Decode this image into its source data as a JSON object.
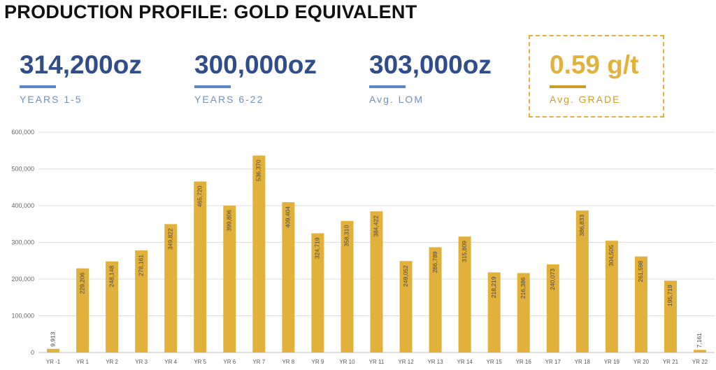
{
  "header": {
    "title": "PRODUCTION PROFILE: GOLD EQUIVALENT"
  },
  "stats": [
    {
      "value": "314,200oz",
      "label": "YEARS 1-5"
    },
    {
      "value": "300,000oz",
      "label": "YEARS 6-22"
    },
    {
      "value": "303,000oz",
      "label": "Avg. LOM"
    },
    {
      "value": "0.59 g/t",
      "label": "Avg. GRADE"
    }
  ],
  "colors": {
    "bar": "#e2b13c",
    "stat_blue": "#2f4d8a",
    "stat_gold": "#e2b13c",
    "grid": "#dddddd"
  },
  "chart_data": {
    "type": "bar",
    "title": "",
    "xlabel": "",
    "ylabel": "",
    "ylim": [
      0,
      600000
    ],
    "yticks": [
      0,
      100000,
      200000,
      300000,
      400000,
      500000,
      600000
    ],
    "ytick_labels": [
      "0",
      "100,000",
      "200,000",
      "300,000",
      "400,000",
      "500,000",
      "600,000"
    ],
    "grid": true,
    "categories": [
      "YR -1",
      "YR 1",
      "YR 2",
      "YR 3",
      "YR 4",
      "YR 5",
      "YR 6",
      "YR 7",
      "YR 8",
      "YR 9",
      "YR 10",
      "YR 11",
      "YR 12",
      "YR 13",
      "YR 14",
      "YR 15",
      "YR 16",
      "YR 17",
      "YR 18",
      "YR 19",
      "YR 20",
      "YR 21",
      "YR 22"
    ],
    "values": [
      9913,
      229206,
      248148,
      278161,
      349822,
      465720,
      399806,
      536370,
      409404,
      324719,
      358310,
      384422,
      249052,
      286789,
      315809,
      218219,
      216386,
      240073,
      386833,
      304505,
      261598,
      195719,
      7161
    ],
    "value_labels": [
      "9,913",
      "229,206",
      "248,148",
      "278,161",
      "349,822",
      "465,720",
      "399,806",
      "536,370",
      "409,404",
      "324,719",
      "358,310",
      "384,422",
      "249,052",
      "286,789",
      "315,809",
      "218,219",
      "216,386",
      "240,073",
      "386,833",
      "304,505",
      "261,598",
      "195,719",
      "7,161"
    ]
  }
}
